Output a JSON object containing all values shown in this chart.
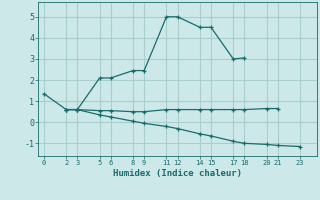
{
  "xlabel": "Humidex (Indice chaleur)",
  "background_color": "#cce8e8",
  "grid_color": "#aacece",
  "line_color": "#1a6b6b",
  "series": [
    {
      "x": [
        0,
        2,
        3,
        5,
        6,
        8,
        9,
        11,
        12,
        14,
        15,
        17,
        18
      ],
      "y": [
        1.35,
        0.6,
        0.6,
        2.1,
        2.1,
        2.45,
        2.45,
        5.0,
        5.0,
        4.5,
        4.5,
        3.0,
        3.05
      ]
    },
    {
      "x": [
        2,
        3,
        5,
        6,
        8,
        9,
        11,
        12,
        14,
        15,
        17,
        18,
        20,
        21
      ],
      "y": [
        0.6,
        0.6,
        0.55,
        0.55,
        0.5,
        0.5,
        0.6,
        0.6,
        0.6,
        0.6,
        0.6,
        0.6,
        0.65,
        0.65
      ]
    },
    {
      "x": [
        2,
        3,
        5,
        6,
        8,
        9,
        11,
        12,
        14,
        15,
        17,
        18,
        20,
        21,
        23
      ],
      "y": [
        0.6,
        0.6,
        0.35,
        0.25,
        0.05,
        -0.05,
        -0.2,
        -0.3,
        -0.55,
        -0.65,
        -0.9,
        -1.0,
        -1.05,
        -1.1,
        -1.15
      ]
    }
  ],
  "xlim": [
    -0.5,
    24.5
  ],
  "ylim": [
    -1.6,
    5.7
  ],
  "xticks": [
    0,
    2,
    3,
    5,
    6,
    8,
    9,
    11,
    12,
    14,
    15,
    17,
    18,
    20,
    21,
    23
  ],
  "yticks": [
    -1,
    0,
    1,
    2,
    3,
    4,
    5
  ]
}
